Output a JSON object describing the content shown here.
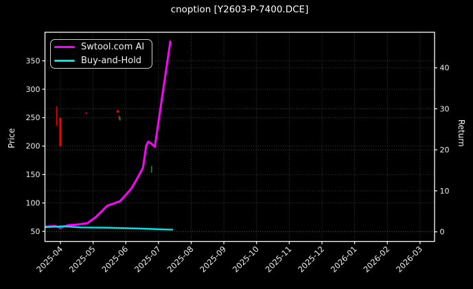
{
  "title": "cnoption [Y2603-P-7400.DCE]",
  "colors": {
    "background": "#000000",
    "foreground": "#ffffff",
    "grid": "#474747",
    "ai_line": "#ff00ff",
    "hold_line": "#00e5e5",
    "sell_marker": "#f00000",
    "buy_marker": "#00993d"
  },
  "legend": {
    "position": "upper left",
    "items": [
      {
        "label": "Swtool.com AI",
        "color": "#ff00ff"
      },
      {
        "label": "Buy-and-Hold",
        "color": "#00e5e5"
      }
    ]
  },
  "axes": {
    "y_left": {
      "label": "Price",
      "ticks": [
        50,
        100,
        150,
        200,
        250,
        300,
        350
      ],
      "range": [
        32,
        400
      ]
    },
    "y_right": {
      "label": "Return",
      "ticks": [
        0,
        10,
        20,
        30,
        40
      ],
      "range": [
        -2.3,
        48.7
      ]
    },
    "x": {
      "labels": [
        "2025-04",
        "2025-05",
        "2025-06",
        "2025-07",
        "2025-08",
        "2025-09",
        "2025-10",
        "2025-11",
        "2025-12",
        "2026-01",
        "2026-02",
        "2026-03"
      ],
      "range": [
        "2025-03-17",
        "2026-03-14"
      ]
    }
  },
  "chart_data": {
    "type": "line",
    "title": "cnoption [Y2603-P-7400.DCE]",
    "xlabel": "",
    "ylabel_left": "Price",
    "ylabel_right": "Return",
    "grid": true,
    "legend_position": "upper left",
    "series": [
      {
        "name": "Swtool.com AI",
        "color": "#ff00ff",
        "axis": "left",
        "points": [
          [
            "2025-03-18",
            58.5
          ],
          [
            "2025-03-26",
            59.5
          ],
          [
            "2025-04-01",
            56.5
          ],
          [
            "2025-04-08",
            61
          ],
          [
            "2025-04-16",
            62
          ],
          [
            "2025-04-26",
            64.5
          ],
          [
            "2025-05-04",
            76
          ],
          [
            "2025-05-14",
            95
          ],
          [
            "2025-05-26",
            103
          ],
          [
            "2025-06-06",
            125
          ],
          [
            "2025-06-11",
            141
          ],
          [
            "2025-06-17",
            162
          ],
          [
            "2025-06-20",
            201
          ],
          [
            "2025-06-22",
            208
          ],
          [
            "2025-06-25",
            204
          ],
          [
            "2025-06-28",
            199
          ],
          [
            "2025-07-12",
            384
          ]
        ]
      },
      {
        "name": "Buy-and-Hold",
        "color": "#00e5e5",
        "axis": "left",
        "points": [
          [
            "2025-03-18",
            57.5
          ],
          [
            "2025-04-04",
            59
          ],
          [
            "2025-04-20",
            57
          ],
          [
            "2025-05-15",
            56.5
          ],
          [
            "2025-06-15",
            55
          ],
          [
            "2025-07-14",
            53
          ]
        ]
      }
    ],
    "markers": [
      {
        "shape": "vline",
        "color": "#f00000",
        "date": "2025-03-28",
        "price_from": 270,
        "price_to": 236,
        "thickness": "thin"
      },
      {
        "shape": "vline",
        "color": "#f00000",
        "date": "2025-04-01",
        "price_from": 250,
        "price_to": 200,
        "thickness": "thick"
      },
      {
        "shape": "dot",
        "color": "#f00000",
        "date": "2025-04-25",
        "price": 258,
        "radius": 1.2
      },
      {
        "shape": "dot",
        "color": "#f00000",
        "date": "2025-05-24",
        "price": 261,
        "radius": 1.9
      },
      {
        "shape": "vline",
        "color": "#f00000",
        "date": "2025-05-25",
        "price_from": 254,
        "price_to": 247,
        "thickness": "thin"
      },
      {
        "shape": "vline",
        "color": "#00993d",
        "date": "2025-05-26",
        "price_from": 252,
        "price_to": 245,
        "thickness": "thin"
      },
      {
        "shape": "vline",
        "color": "#00993d",
        "date": "2025-06-25",
        "price_from": 165,
        "price_to": 153,
        "thickness": "thin"
      }
    ]
  }
}
